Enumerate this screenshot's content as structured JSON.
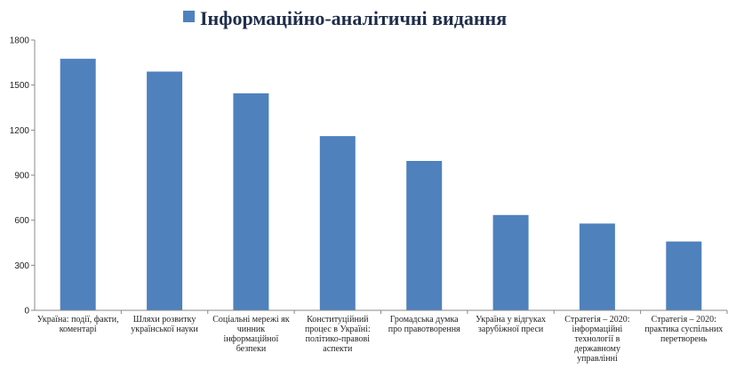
{
  "chart_data": {
    "type": "bar",
    "legend": {
      "position": "top-center",
      "series_name": "Інформаційно-аналітичні видання"
    },
    "categories": [
      [
        "Україна: події, факти,",
        "коментарі"
      ],
      [
        "Шляхи розвитку",
        "української науки"
      ],
      [
        "Соціальні мережі як",
        "чинник",
        "інформаційної",
        "безпеки"
      ],
      [
        "Конституційний",
        "процес в Україні:",
        "політико-правові",
        "аспекти"
      ],
      [
        "Громадська думка",
        "про правотворення"
      ],
      [
        "Україна у відгуках",
        "зарубіжної преси"
      ],
      [
        "Стратегія – 2020:",
        "інформаційні",
        "технології в",
        "державному",
        "управлінні"
      ],
      [
        "Стратегія – 2020:",
        "практика суспільних",
        "перетворень"
      ]
    ],
    "series": [
      {
        "name": "Інформаційно-аналітичні видання",
        "values": [
          1675,
          1590,
          1445,
          1160,
          995,
          635,
          578,
          458
        ],
        "color": "#4f81bd"
      }
    ],
    "y_ticks": [
      "0",
      "300",
      "600",
      "900",
      "1200",
      "1500",
      "1800"
    ],
    "ylim": [
      0,
      1800
    ],
    "grid": false
  }
}
